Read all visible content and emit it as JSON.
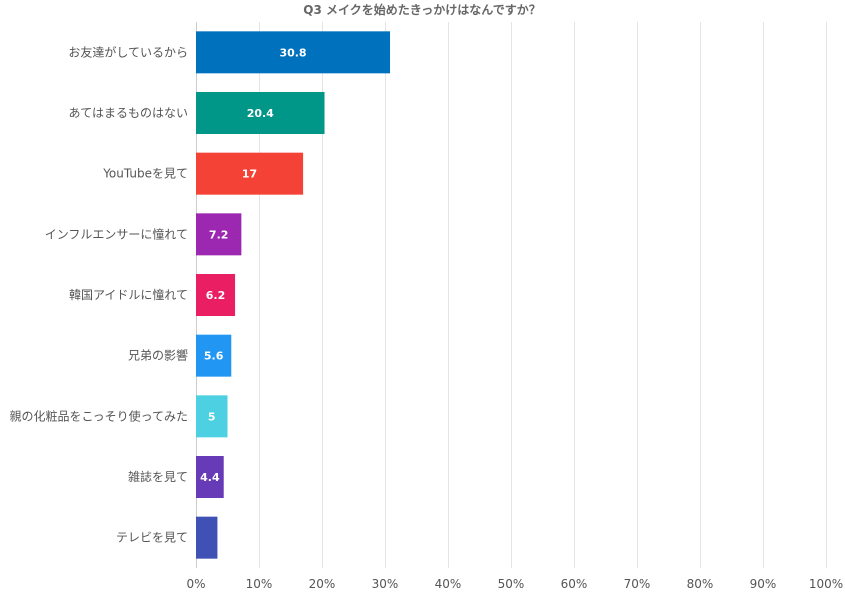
{
  "chart_data": {
    "type": "bar",
    "orientation": "horizontal",
    "title": "Q3 メイクを始めたきっかけはなんですか？",
    "categories": [
      "お友達がしているから",
      "あてはまるものはない",
      "YouTubeを見て",
      "インフルエンサーに憧れて",
      "韓国アイドルに憧れて",
      "兄弟の影響",
      "親の化粧品をこっそり使ってみた",
      "雑誌を見て",
      "テレビを見て"
    ],
    "values": [
      30.8,
      20.4,
      17,
      7.2,
      6.2,
      5.6,
      5,
      4.4,
      3.4
    ],
    "data_labels": [
      "30.8",
      "20.4",
      "17",
      "7.2",
      "6.2",
      "5.6",
      "5",
      "4.4",
      ""
    ],
    "colors": [
      "#0071bc",
      "#009688",
      "#f44336",
      "#9c27b0",
      "#e91e63",
      "#2196f3",
      "#4dd0e1",
      "#673ab7",
      "#3f51b5"
    ],
    "xlim": [
      0,
      100
    ],
    "x_ticks": [
      0,
      10,
      20,
      30,
      40,
      50,
      60,
      70,
      80,
      90,
      100
    ],
    "x_tick_labels": [
      "0%",
      "10%",
      "20%",
      "30%",
      "40%",
      "50%",
      "60%",
      "70%",
      "80%",
      "90%",
      "100%"
    ],
    "grid": true,
    "xlabel": "",
    "ylabel": ""
  }
}
